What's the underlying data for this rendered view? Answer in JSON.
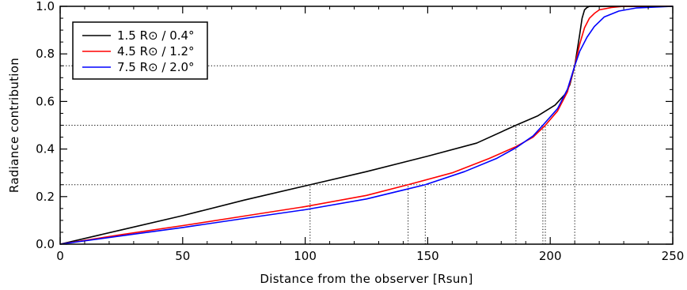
{
  "chart_data": {
    "type": "line",
    "title": "",
    "xlabel": "Distance from the observer [Rsun]",
    "ylabel": "Radiance contribution",
    "xlim": [
      0,
      250
    ],
    "ylim": [
      0,
      1.0
    ],
    "xticks": [
      0,
      50,
      100,
      150,
      200,
      250
    ],
    "yticks": [
      0.0,
      0.2,
      0.4,
      0.6,
      0.8,
      1.0
    ],
    "xtick_labels": [
      "0",
      "50",
      "100",
      "150",
      "200",
      "250"
    ],
    "ytick_labels": [
      "0.0",
      "0.2",
      "0.4",
      "0.6",
      "0.8",
      "1.0"
    ],
    "grid": false,
    "legend": "top-left",
    "series": [
      {
        "name": "1.5 R⊙ / 0.4°",
        "color": "#000000",
        "x": [
          0,
          25,
          50,
          75,
          100,
          125,
          150,
          170,
          186,
          195,
          202,
          206,
          208,
          210,
          212,
          213,
          214,
          215,
          216,
          218,
          220,
          250
        ],
        "y": [
          0,
          0.06,
          0.12,
          0.185,
          0.245,
          0.305,
          0.37,
          0.425,
          0.5,
          0.54,
          0.585,
          0.63,
          0.67,
          0.75,
          0.88,
          0.95,
          0.985,
          0.995,
          1.0,
          1.0,
          1.0,
          1.0
        ]
      },
      {
        "name": "4.5 R⊙ / 1.2°",
        "color": "#ff0000",
        "x": [
          0,
          25,
          50,
          75,
          100,
          125,
          142,
          160,
          175,
          186,
          193,
          198,
          203,
          207,
          210,
          212,
          214,
          216,
          218,
          220,
          225,
          230,
          250
        ],
        "y": [
          0,
          0.04,
          0.078,
          0.118,
          0.158,
          0.205,
          0.25,
          0.3,
          0.36,
          0.41,
          0.45,
          0.5,
          0.56,
          0.64,
          0.75,
          0.84,
          0.91,
          0.95,
          0.97,
          0.985,
          0.995,
          1.0,
          1.0
        ]
      },
      {
        "name": "7.5 R⊙ / 2.0°",
        "color": "#0000ff",
        "x": [
          0,
          25,
          50,
          75,
          100,
          125,
          149,
          165,
          178,
          186,
          193,
          197,
          203,
          207,
          210,
          212,
          215,
          218,
          222,
          228,
          235,
          250
        ],
        "y": [
          0,
          0.035,
          0.07,
          0.108,
          0.145,
          0.19,
          0.25,
          0.305,
          0.36,
          0.405,
          0.455,
          0.5,
          0.57,
          0.65,
          0.75,
          0.81,
          0.87,
          0.915,
          0.955,
          0.98,
          0.993,
          1.0
        ]
      }
    ],
    "reference_lines": {
      "horizontal": [
        {
          "y": 0.25,
          "x_start": 0,
          "x_end": 250
        },
        {
          "y": 0.5,
          "x_start": 0,
          "x_end": 250
        },
        {
          "y": 0.75,
          "x_start": 0,
          "x_end": 250
        }
      ],
      "vertical": [
        {
          "x": 102,
          "y_top": 0.25
        },
        {
          "x": 142,
          "y_top": 0.25
        },
        {
          "x": 149,
          "y_top": 0.25
        },
        {
          "x": 186,
          "y_top": 0.5
        },
        {
          "x": 197,
          "y_top": 0.5
        },
        {
          "x": 198,
          "y_top": 0.5
        },
        {
          "x": 210,
          "y_top": 0.75
        }
      ]
    }
  }
}
